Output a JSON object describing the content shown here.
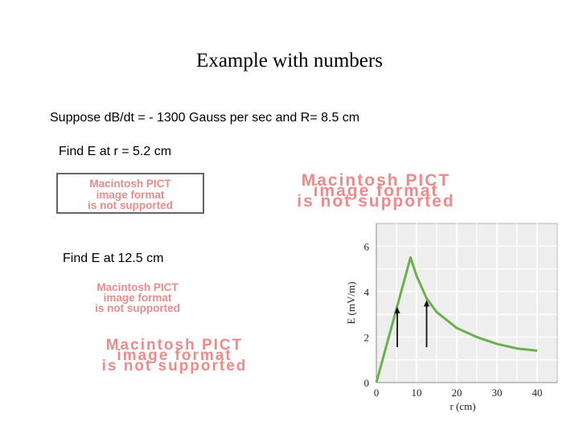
{
  "slide": {
    "title": "Example with numbers",
    "lines": [
      "Suppose dB/dt = - 1300 Gauss per sec and R= 8.5 cm",
      "Find E at r = 5.2 cm",
      "Find E at 12.5 cm"
    ]
  },
  "placeholder": {
    "line1": "Macintosh PICT",
    "line2": "image format",
    "line3": "is not supported",
    "color": "#ef8a8a"
  },
  "chart_data": {
    "type": "line",
    "xlabel": "r (cm)",
    "ylabel": "E (mV/m)",
    "xlim": [
      0,
      45
    ],
    "ylim": [
      0,
      7
    ],
    "xticks": [
      0,
      10,
      20,
      30,
      40
    ],
    "yticks": [
      0,
      2,
      4,
      6
    ],
    "grid": true,
    "series": [
      {
        "color": "#6ab04c",
        "x": [
          0,
          8.5,
          10,
          12.5,
          15,
          20,
          25,
          30,
          35,
          40
        ],
        "y": [
          0,
          5.5,
          4.7,
          3.7,
          3.1,
          2.4,
          2.0,
          1.7,
          1.5,
          1.4
        ]
      }
    ],
    "markers": [
      {
        "x": 5.2,
        "y": 3.4
      },
      {
        "x": 12.5,
        "y": 3.7
      }
    ]
  }
}
